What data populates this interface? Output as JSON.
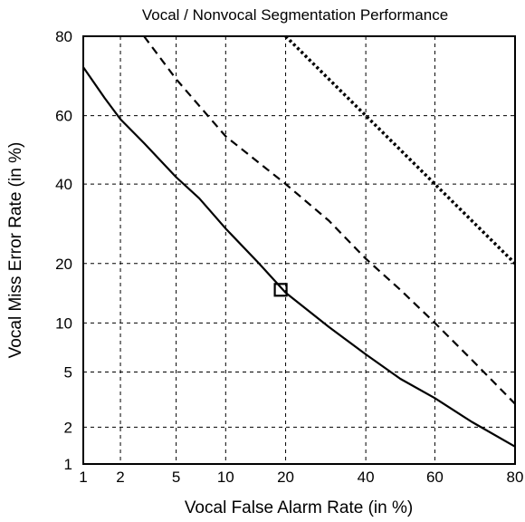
{
  "chart_data": {
    "type": "line",
    "title": "Vocal / Nonvocal Segmentation Performance",
    "xlabel": "Vocal False Alarm Rate (in %)",
    "ylabel": "Vocal Miss Error Rate (in %)",
    "x_scale": "probit",
    "y_scale": "probit",
    "xlim": [
      1,
      80
    ],
    "ylim": [
      1,
      80
    ],
    "x_ticks": [
      1,
      2,
      5,
      10,
      20,
      40,
      60,
      80
    ],
    "y_ticks": [
      1,
      2,
      5,
      10,
      20,
      40,
      60,
      80
    ],
    "x_tick_labels": [
      "1",
      "2",
      "5",
      "10",
      "20",
      "40",
      "60",
      "80"
    ],
    "y_tick_labels": [
      "1",
      "2",
      "5",
      "10",
      "20",
      "40",
      "60",
      "80"
    ],
    "grid": true,
    "series": [
      {
        "style": "solid",
        "x": [
          1,
          1.5,
          2,
          3,
          5,
          7,
          10,
          15,
          20,
          30,
          40,
          50,
          60,
          70,
          80
        ],
        "y": [
          73,
          65,
          59,
          52,
          42,
          36,
          28,
          20,
          14.5,
          9.5,
          6.5,
          4.5,
          3.3,
          2.2,
          1.4
        ]
      },
      {
        "style": "dashed",
        "x": [
          3,
          5,
          10,
          20,
          30,
          40,
          50,
          60,
          70,
          80
        ],
        "y": [
          80,
          70,
          54,
          40,
          30,
          21,
          15,
          10,
          6,
          3
        ]
      },
      {
        "style": "dotted",
        "x": [
          20,
          30,
          40,
          50,
          60,
          70,
          80
        ],
        "y": [
          80,
          70,
          60,
          50,
          40,
          30,
          20
        ]
      }
    ],
    "markers": [
      {
        "shape": "square",
        "x": 19,
        "y": 15
      }
    ],
    "colors": {
      "line": "#000000",
      "grid": "#000000",
      "background": "#ffffff"
    }
  }
}
